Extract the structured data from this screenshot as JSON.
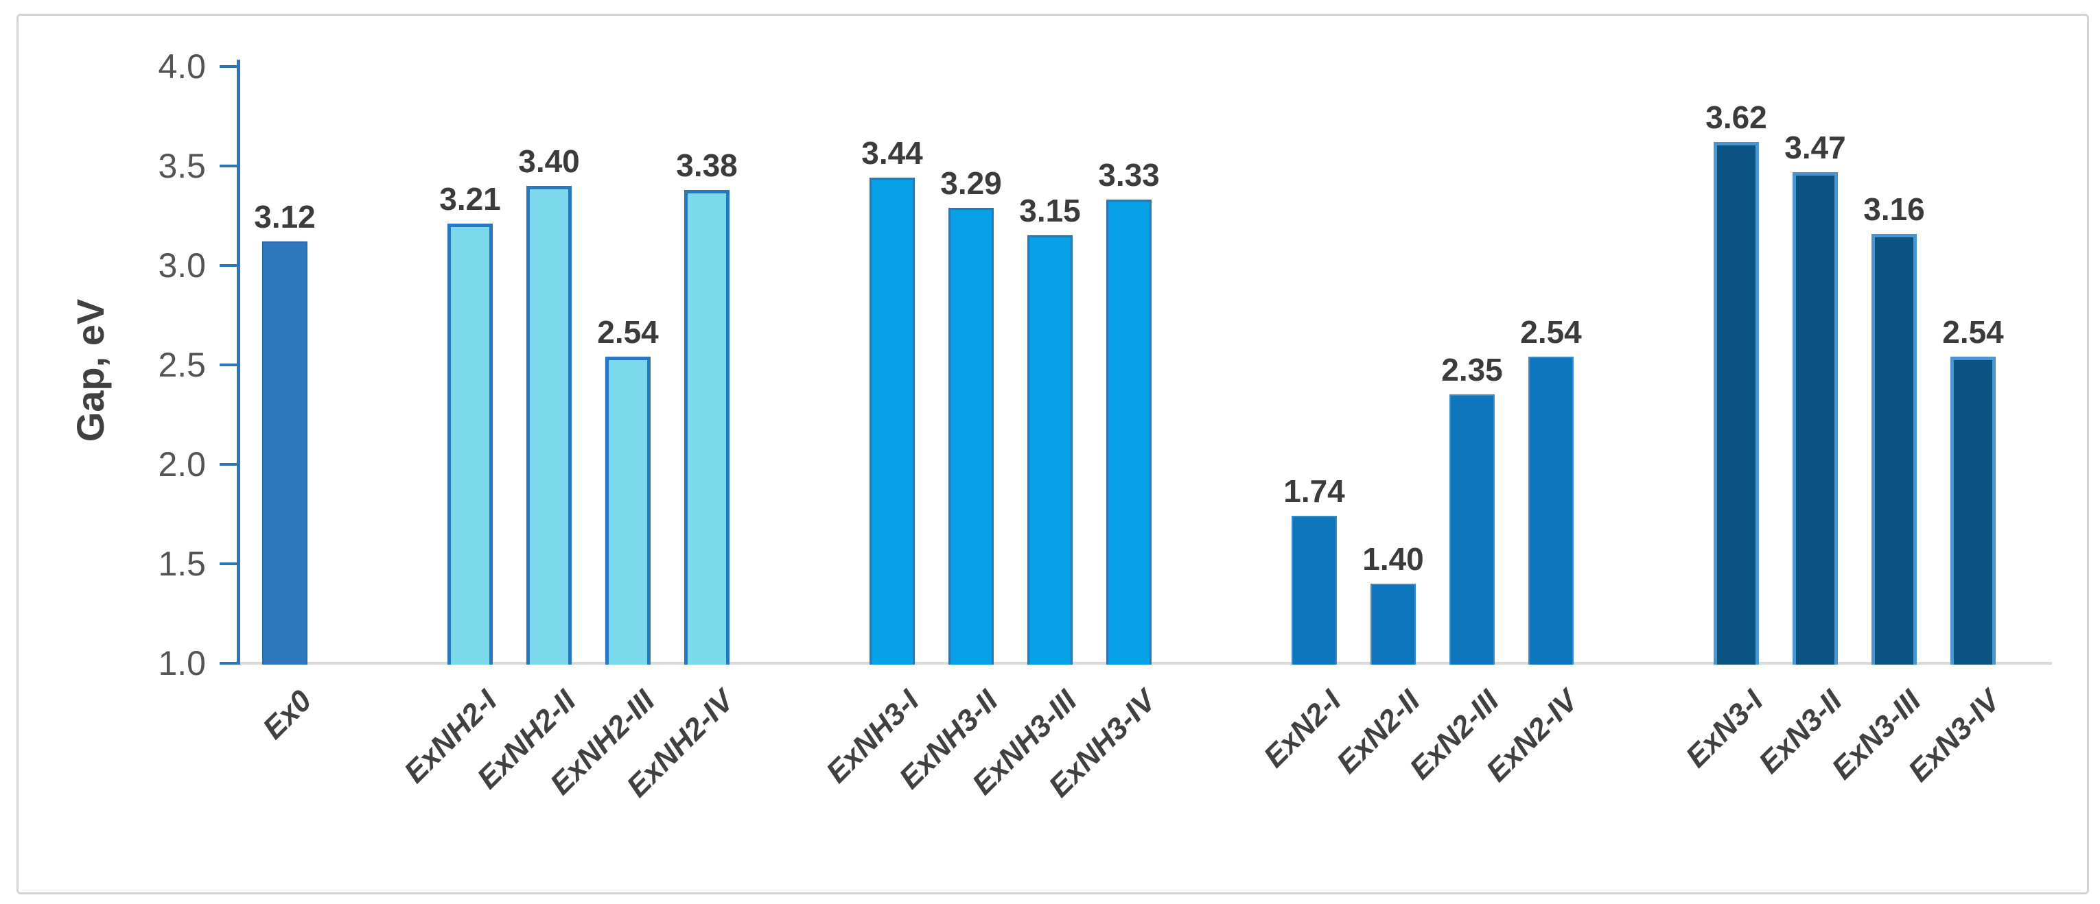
{
  "figure": {
    "background_color": "#ffffff",
    "frame_border_color": "#d4d4d4"
  },
  "chart_data": {
    "type": "bar",
    "title": "",
    "xlabel": "",
    "ylabel": "Gap, eV",
    "ylim": [
      1.0,
      4.0
    ],
    "ytick_labels": [
      "4.0",
      "3.5",
      "3.0",
      "2.5",
      "2.0",
      "1.5",
      "1.0"
    ],
    "ytick_values": [
      4.0,
      3.5,
      3.0,
      2.5,
      2.0,
      1.5,
      1.0
    ],
    "grid": false,
    "legend": null,
    "categories": [
      "Ex0",
      "ExNH2-I",
      "ExNH2-II",
      "ExNH2-III",
      "ExNH2-IV",
      "ExNH3-I",
      "ExNH3-II",
      "ExNH3-III",
      "ExNH3-IV",
      "ExN2-I",
      "ExN2-II",
      "ExN2-III",
      "ExN2-IV",
      "ExN3-I",
      "ExN3-II",
      "ExN3-III",
      "ExN3-IV"
    ],
    "values": [
      3.12,
      3.21,
      3.4,
      2.54,
      3.38,
      3.44,
      3.29,
      3.15,
      3.33,
      1.74,
      1.4,
      2.35,
      2.54,
      3.62,
      3.47,
      3.16,
      2.54
    ],
    "value_labels": [
      "3.12",
      "3.21",
      "3.40",
      "2.54",
      "3.38",
      "3.44",
      "3.29",
      "3.15",
      "3.33",
      "1.74",
      "1.40",
      "2.35",
      "2.54",
      "3.62",
      "3.47",
      "3.16",
      "2.54"
    ],
    "groups": [
      {
        "name": "Ex0",
        "fill_color": "#2E79BE",
        "border_color": "#2A6CAE",
        "border_px": 2,
        "bars": [
          {
            "label": "Ex0",
            "value": 3.12,
            "value_label": "3.12"
          }
        ]
      },
      {
        "name": "ExNH2",
        "fill_color": "#7CD9EC",
        "border_color": "#2878C0",
        "border_px": 5,
        "bars": [
          {
            "label": "ExNH2-I",
            "value": 3.21,
            "value_label": "3.21"
          },
          {
            "label": "ExNH2-II",
            "value": 3.4,
            "value_label": "3.40"
          },
          {
            "label": "ExNH2-III",
            "value": 2.54,
            "value_label": "2.54"
          },
          {
            "label": "ExNH2-IV",
            "value": 3.38,
            "value_label": "3.38"
          }
        ]
      },
      {
        "name": "ExNH3",
        "fill_color": "#05A0E6",
        "border_color": "#2C77B5",
        "border_px": 3,
        "bars": [
          {
            "label": "ExNH3-I",
            "value": 3.44,
            "value_label": "3.44"
          },
          {
            "label": "ExNH3-II",
            "value": 3.29,
            "value_label": "3.29"
          },
          {
            "label": "ExNH3-III",
            "value": 3.15,
            "value_label": "3.15"
          },
          {
            "label": "ExNH3-IV",
            "value": 3.33,
            "value_label": "3.33"
          }
        ]
      },
      {
        "name": "ExN2",
        "fill_color": "#0E76BC",
        "border_color": "#3E8BC8",
        "border_px": 2,
        "bars": [
          {
            "label": "ExN2-I",
            "value": 1.74,
            "value_label": "1.74"
          },
          {
            "label": "ExN2-II",
            "value": 1.4,
            "value_label": "1.40"
          },
          {
            "label": "ExN2-III",
            "value": 2.35,
            "value_label": "2.35"
          },
          {
            "label": "ExN2-IV",
            "value": 2.54,
            "value_label": "2.54"
          }
        ]
      },
      {
        "name": "ExN3",
        "fill_color": "#0B5380",
        "border_color": "#4A96D2",
        "border_px": 5,
        "bars": [
          {
            "label": "ExN3-I",
            "value": 3.62,
            "value_label": "3.62"
          },
          {
            "label": "ExN3-II",
            "value": 3.47,
            "value_label": "3.47"
          },
          {
            "label": "ExN3-III",
            "value": 3.16,
            "value_label": "3.16"
          },
          {
            "label": "ExN3-IV",
            "value": 2.54,
            "value_label": "2.54"
          }
        ]
      }
    ]
  },
  "style": {
    "axis_color": "#2E75B6",
    "baseline_color": "#D9D9D9",
    "ytick_label_color": "#545454",
    "value_label_color": "#3B3B3B",
    "xtick_label_color": "#404040",
    "ylabel_color": "#404040"
  }
}
